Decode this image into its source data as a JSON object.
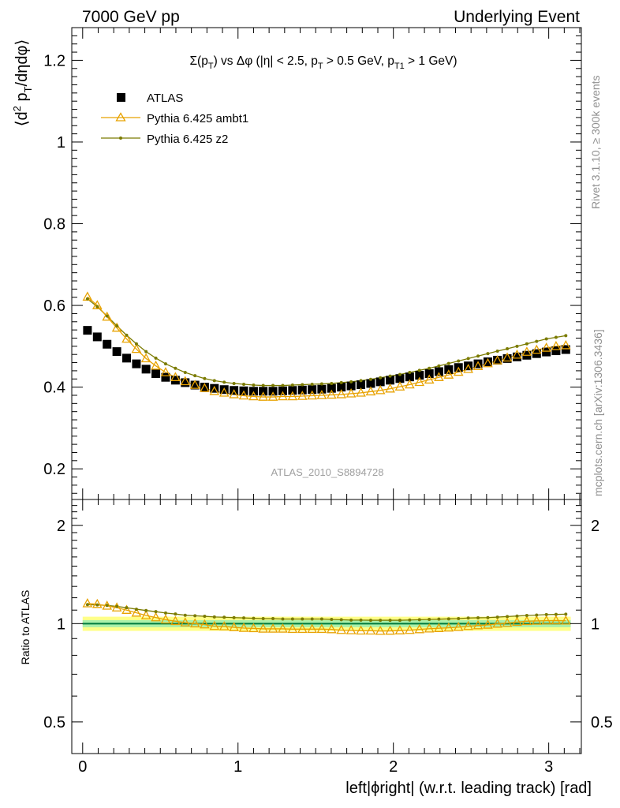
{
  "header": {
    "left": "7000 GeV pp",
    "right": "Underlying Event"
  },
  "side_labels": {
    "rivet": "Rivet 3.1.10, ≥ 300k events",
    "mcplots": "mcplots.cern.ch [arXiv:1306.3436]"
  },
  "watermark": "ATLAS_2010_S8894728",
  "colors": {
    "atlas": "#000000",
    "ambt1": "#e8a200",
    "z2": "#7b7b00",
    "band_outer": "#ffff88",
    "band_inner": "#aaf0aa",
    "ratio_line": "#007a3d"
  },
  "chart_data": [
    {
      "type": "scatter",
      "panel": "main",
      "title_parts": {
        "sigma": "Σ(p",
        "t_sub": "T",
        "vs": ") vs Δφ (|η| < 2.5, p",
        "pt_sub": "T",
        "gt": " > 0.5 GeV, p",
        "t1_sub": "T1",
        "end": " > 1 GeV)"
      },
      "ylabel_parts": {
        "a": "⟨d",
        "sup": "2",
        "b": " p",
        "sub": "T",
        "c": "/dηdφ⟩"
      },
      "xlim": [
        -0.07,
        3.21
      ],
      "ylim": [
        0.125,
        1.28
      ],
      "yticks": [
        0.2,
        0.4,
        0.6,
        0.8,
        1.0,
        1.2
      ],
      "ytick_labels": [
        "0.2",
        "0.4",
        "0.6",
        "0.8",
        "1",
        "1.2"
      ],
      "legend_position": "top-left",
      "series": [
        {
          "name": "ATLAS",
          "marker": "square",
          "x": [
            0.031,
            0.094,
            0.157,
            0.22,
            0.283,
            0.346,
            0.408,
            0.471,
            0.534,
            0.597,
            0.66,
            0.723,
            0.785,
            0.848,
            0.911,
            0.974,
            1.037,
            1.1,
            1.162,
            1.225,
            1.288,
            1.351,
            1.414,
            1.477,
            1.539,
            1.602,
            1.665,
            1.728,
            1.791,
            1.854,
            1.916,
            1.979,
            2.042,
            2.105,
            2.168,
            2.231,
            2.293,
            2.356,
            2.419,
            2.482,
            2.545,
            2.608,
            2.67,
            2.733,
            2.796,
            2.859,
            2.922,
            2.985,
            3.047,
            3.11
          ],
          "y": [
            0.539,
            0.523,
            0.505,
            0.487,
            0.471,
            0.457,
            0.444,
            0.433,
            0.424,
            0.417,
            0.411,
            0.405,
            0.4,
            0.397,
            0.394,
            0.392,
            0.391,
            0.39,
            0.39,
            0.39,
            0.391,
            0.392,
            0.393,
            0.394,
            0.395,
            0.397,
            0.4,
            0.403,
            0.406,
            0.409,
            0.413,
            0.417,
            0.421,
            0.425,
            0.429,
            0.433,
            0.438,
            0.443,
            0.448,
            0.452,
            0.457,
            0.462,
            0.466,
            0.47,
            0.474,
            0.478,
            0.482,
            0.486,
            0.489,
            0.492
          ]
        },
        {
          "name": "Pythia 6.425 ambt1",
          "marker": "triangle",
          "x": [
            0.031,
            0.094,
            0.157,
            0.22,
            0.283,
            0.346,
            0.408,
            0.471,
            0.534,
            0.597,
            0.66,
            0.723,
            0.785,
            0.848,
            0.911,
            0.974,
            1.037,
            1.1,
            1.162,
            1.225,
            1.288,
            1.351,
            1.414,
            1.477,
            1.539,
            1.602,
            1.665,
            1.728,
            1.791,
            1.854,
            1.916,
            1.979,
            2.042,
            2.105,
            2.168,
            2.231,
            2.293,
            2.356,
            2.419,
            2.482,
            2.545,
            2.608,
            2.67,
            2.733,
            2.796,
            2.859,
            2.922,
            2.985,
            3.047,
            3.11
          ],
          "y": [
            0.621,
            0.6,
            0.572,
            0.545,
            0.518,
            0.493,
            0.47,
            0.452,
            0.436,
            0.424,
            0.414,
            0.405,
            0.397,
            0.39,
            0.386,
            0.382,
            0.379,
            0.377,
            0.376,
            0.376,
            0.377,
            0.377,
            0.378,
            0.379,
            0.38,
            0.381,
            0.382,
            0.384,
            0.386,
            0.389,
            0.392,
            0.396,
            0.401,
            0.406,
            0.412,
            0.418,
            0.424,
            0.43,
            0.437,
            0.444,
            0.451,
            0.458,
            0.465,
            0.472,
            0.479,
            0.486,
            0.491,
            0.496,
            0.5,
            0.502
          ]
        },
        {
          "name": "Pythia 6.425 z2",
          "marker": "dot",
          "x": [
            0.031,
            0.094,
            0.157,
            0.22,
            0.283,
            0.346,
            0.408,
            0.471,
            0.534,
            0.597,
            0.66,
            0.723,
            0.785,
            0.848,
            0.911,
            0.974,
            1.037,
            1.1,
            1.162,
            1.225,
            1.288,
            1.351,
            1.414,
            1.477,
            1.539,
            1.602,
            1.665,
            1.728,
            1.791,
            1.854,
            1.916,
            1.979,
            2.042,
            2.105,
            2.168,
            2.231,
            2.293,
            2.356,
            2.419,
            2.482,
            2.545,
            2.608,
            2.67,
            2.733,
            2.796,
            2.859,
            2.922,
            2.985,
            3.047,
            3.11
          ],
          "y": [
            0.616,
            0.597,
            0.574,
            0.55,
            0.527,
            0.506,
            0.487,
            0.471,
            0.457,
            0.446,
            0.436,
            0.428,
            0.421,
            0.416,
            0.412,
            0.409,
            0.407,
            0.405,
            0.404,
            0.404,
            0.404,
            0.405,
            0.406,
            0.407,
            0.408,
            0.409,
            0.411,
            0.413,
            0.416,
            0.419,
            0.423,
            0.427,
            0.431,
            0.436,
            0.441,
            0.446,
            0.452,
            0.458,
            0.464,
            0.47,
            0.476,
            0.482,
            0.488,
            0.494,
            0.5,
            0.506,
            0.512,
            0.518,
            0.522,
            0.526
          ]
        }
      ]
    },
    {
      "type": "line",
      "panel": "ratio",
      "ylabel": "Ratio to ATLAS",
      "xlabel": "left|ϕright| (w.r.t. leading track) [rad]",
      "xlim": [
        -0.07,
        3.21
      ],
      "ylim": [
        0.4,
        2.4
      ],
      "xticks": [
        0,
        1,
        2,
        3
      ],
      "xtick_labels": [
        "0",
        "1",
        "2",
        "3"
      ],
      "yticks": [
        0.5,
        1,
        2
      ],
      "ytick_labels": [
        "0.5",
        "1",
        "2"
      ],
      "scale": "log",
      "reference": 1.0,
      "band_outer": [
        0.95,
        1.05
      ],
      "band_inner": [
        0.975,
        1.025
      ],
      "series": [
        {
          "name": "Pythia 6.425 ambt1",
          "marker": "triangle",
          "y": [
            1.152,
            1.147,
            1.133,
            1.119,
            1.1,
            1.079,
            1.059,
            1.044,
            1.028,
            1.017,
            1.007,
            1.0,
            0.993,
            0.982,
            0.98,
            0.974,
            0.969,
            0.967,
            0.964,
            0.964,
            0.964,
            0.962,
            0.962,
            0.962,
            0.962,
            0.96,
            0.955,
            0.953,
            0.951,
            0.951,
            0.949,
            0.95,
            0.952,
            0.955,
            0.96,
            0.965,
            0.968,
            0.971,
            0.975,
            0.982,
            0.987,
            0.991,
            0.998,
            1.004,
            1.011,
            1.017,
            1.019,
            1.021,
            1.022,
            1.02
          ]
        },
        {
          "name": "Pythia 6.425 z2",
          "marker": "dot",
          "y": [
            1.143,
            1.141,
            1.137,
            1.129,
            1.119,
            1.107,
            1.097,
            1.088,
            1.078,
            1.07,
            1.061,
            1.057,
            1.053,
            1.048,
            1.046,
            1.043,
            1.041,
            1.038,
            1.036,
            1.036,
            1.033,
            1.033,
            1.033,
            1.033,
            1.033,
            1.03,
            1.028,
            1.025,
            1.025,
            1.024,
            1.024,
            1.024,
            1.024,
            1.026,
            1.028,
            1.03,
            1.032,
            1.034,
            1.036,
            1.04,
            1.042,
            1.043,
            1.047,
            1.051,
            1.055,
            1.059,
            1.062,
            1.066,
            1.067,
            1.069
          ]
        }
      ]
    }
  ]
}
